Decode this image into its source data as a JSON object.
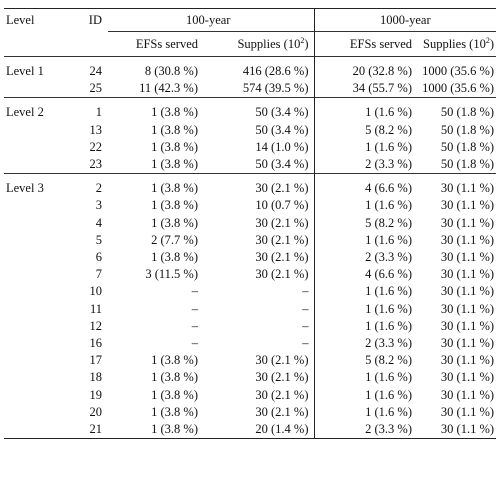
{
  "header": {
    "level": "Level",
    "id": "ID",
    "group1": "100-year",
    "group2": "1000-year",
    "efs_served": "EFSs served",
    "supplies_prefix": "Supplies (10",
    "supplies_exp": "2",
    "supplies_suffix": ")"
  },
  "rows": [
    {
      "level": "Level 1",
      "id": "24",
      "efs100": "8 (30.8 %)",
      "sup100": "416 (28.6 %)",
      "efs1000": "20 (32.8 %)",
      "sup1000": "1000 (35.6 %)"
    },
    {
      "level": "",
      "id": "25",
      "efs100": "11 (42.3 %)",
      "sup100": "574 (39.5 %)",
      "efs1000": "34 (55.7 %)",
      "sup1000": "1000 (35.6 %)"
    },
    {
      "level": "Level 2",
      "id": "1",
      "efs100": "1 (3.8 %)",
      "sup100": "50 (3.4 %)",
      "efs1000": "1 (1.6 %)",
      "sup1000": "50 (1.8 %)"
    },
    {
      "level": "",
      "id": "13",
      "efs100": "1 (3.8 %)",
      "sup100": "50 (3.4 %)",
      "efs1000": "5 (8.2 %)",
      "sup1000": "50 (1.8 %)"
    },
    {
      "level": "",
      "id": "22",
      "efs100": "1 (3.8 %)",
      "sup100": "14 (1.0 %)",
      "efs1000": "1 (1.6 %)",
      "sup1000": "50 (1.8 %)"
    },
    {
      "level": "",
      "id": "23",
      "efs100": "1 (3.8 %)",
      "sup100": "50 (3.4 %)",
      "efs1000": "2 (3.3 %)",
      "sup1000": "50 (1.8 %)"
    },
    {
      "level": "Level 3",
      "id": "2",
      "efs100": "1 (3.8 %)",
      "sup100": "30 (2.1 %)",
      "efs1000": "4 (6.6 %)",
      "sup1000": "30 (1.1 %)"
    },
    {
      "level": "",
      "id": "3",
      "efs100": "1 (3.8 %)",
      "sup100": "10 (0.7 %)",
      "efs1000": "1 (1.6 %)",
      "sup1000": "30 (1.1 %)"
    },
    {
      "level": "",
      "id": "4",
      "efs100": "1 (3.8 %)",
      "sup100": "30 (2.1 %)",
      "efs1000": "5 (8.2 %)",
      "sup1000": "30 (1.1 %)"
    },
    {
      "level": "",
      "id": "5",
      "efs100": "2 (7.7 %)",
      "sup100": "30 (2.1 %)",
      "efs1000": "1 (1.6 %)",
      "sup1000": "30 (1.1 %)"
    },
    {
      "level": "",
      "id": "6",
      "efs100": "1 (3.8 %)",
      "sup100": "30 (2.1 %)",
      "efs1000": "2 (3.3 %)",
      "sup1000": "30 (1.1 %)"
    },
    {
      "level": "",
      "id": "7",
      "efs100": "3 (11.5 %)",
      "sup100": "30 (2.1 %)",
      "efs1000": "4 (6.6 %)",
      "sup1000": "30 (1.1 %)"
    },
    {
      "level": "",
      "id": "10",
      "efs100": "–",
      "sup100": "–",
      "efs1000": "1 (1.6 %)",
      "sup1000": "30 (1.1 %)"
    },
    {
      "level": "",
      "id": "11",
      "efs100": "–",
      "sup100": "–",
      "efs1000": "1 (1.6 %)",
      "sup1000": "30 (1.1 %)"
    },
    {
      "level": "",
      "id": "12",
      "efs100": "–",
      "sup100": "–",
      "efs1000": "1 (1.6 %)",
      "sup1000": "30 (1.1 %)"
    },
    {
      "level": "",
      "id": "16",
      "efs100": "–",
      "sup100": "–",
      "efs1000": "2 (3.3 %)",
      "sup1000": "30 (1.1 %)"
    },
    {
      "level": "",
      "id": "17",
      "efs100": "1 (3.8 %)",
      "sup100": "30 (2.1 %)",
      "efs1000": "5 (8.2 %)",
      "sup1000": "30 (1.1 %)"
    },
    {
      "level": "",
      "id": "18",
      "efs100": "1 (3.8 %)",
      "sup100": "30 (2.1 %)",
      "efs1000": "1 (1.6 %)",
      "sup1000": "30 (1.1 %)"
    },
    {
      "level": "",
      "id": "19",
      "efs100": "1 (3.8 %)",
      "sup100": "30 (2.1 %)",
      "efs1000": "1 (1.6 %)",
      "sup1000": "30 (1.1 %)"
    },
    {
      "level": "",
      "id": "20",
      "efs100": "1 (3.8 %)",
      "sup100": "30 (2.1 %)",
      "efs1000": "1 (1.6 %)",
      "sup1000": "30 (1.1 %)"
    },
    {
      "level": "",
      "id": "21",
      "efs100": "1 (3.8 %)",
      "sup100": "20 (1.4 %)",
      "efs1000": "2 (3.3 %)",
      "sup1000": "30 (1.1 %)"
    }
  ]
}
